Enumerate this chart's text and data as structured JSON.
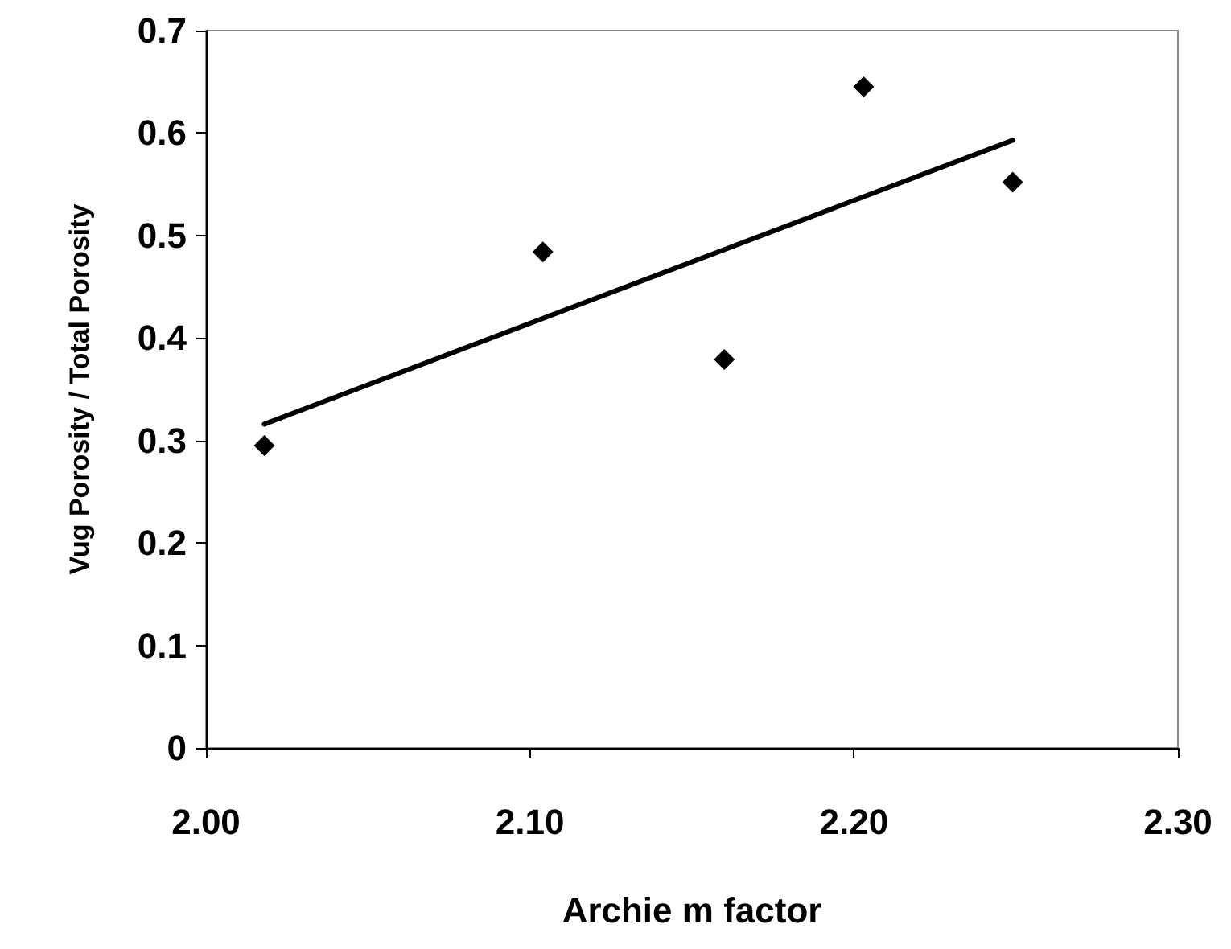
{
  "chart_data": {
    "type": "scatter",
    "xlabel": "Archie m factor",
    "ylabel": "Vug Porosity / Total Porosity",
    "xlim": [
      2.0,
      2.3
    ],
    "xticks": [
      {
        "value": 2.0,
        "label": "2.00"
      },
      {
        "value": 2.1,
        "label": "2.10"
      },
      {
        "value": 2.2,
        "label": "2.20"
      },
      {
        "value": 2.3,
        "label": "2.30"
      }
    ],
    "ylim": [
      0,
      0.7
    ],
    "yticks": [
      0,
      0.1,
      0.2,
      0.3,
      0.4,
      0.5,
      0.6,
      0.7
    ],
    "grid": false,
    "series": [
      {
        "color": "#000000",
        "marker": "diamond",
        "x": [
          2.018,
          2.104,
          2.16,
          2.203,
          2.249
        ],
        "values": [
          0.295,
          0.484,
          0.379,
          0.645,
          0.552
        ]
      },
      {
        "type": "line",
        "color": "#000000",
        "marker": "none",
        "line_style": "solid",
        "x": [
          2.018,
          2.249
        ],
        "values": [
          0.316,
          0.593
        ]
      }
    ]
  }
}
